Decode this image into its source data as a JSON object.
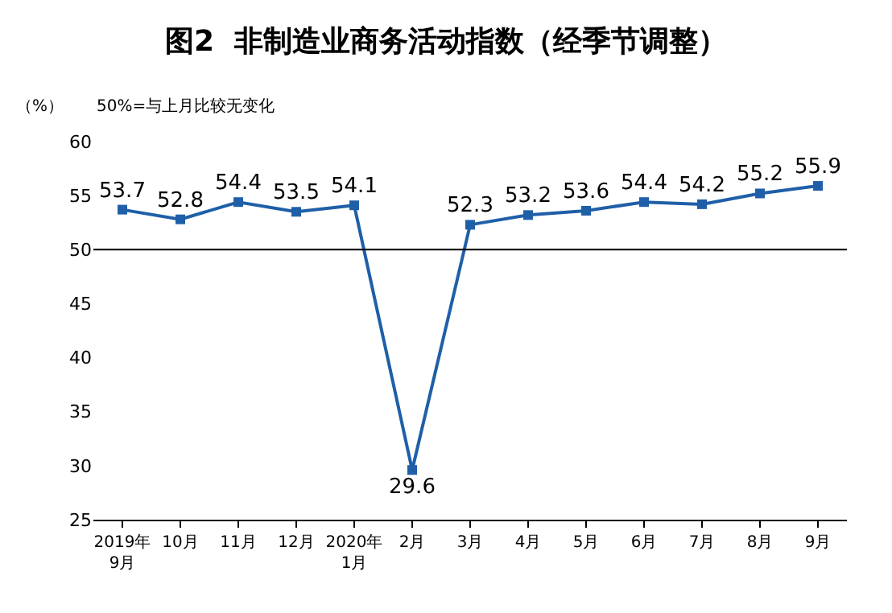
{
  "chart_data": {
    "type": "line",
    "title": "图2  非制造业商务活动指数（经季节调整）",
    "ylabel": "（%）",
    "annotations": [
      "50%=与上月比较无变化"
    ],
    "categories": [
      "2019年\n9月",
      "10月",
      "11月",
      "12月",
      "2020年\n1月",
      "2月",
      "3月",
      "4月",
      "5月",
      "6月",
      "7月",
      "8月",
      "9月"
    ],
    "series": [
      {
        "color": "#1f5fa8",
        "values": [
          53.7,
          52.8,
          54.4,
          53.5,
          54.1,
          29.6,
          52.3,
          53.2,
          53.6,
          54.4,
          54.2,
          55.2,
          55.9
        ]
      }
    ],
    "ylim": [
      25,
      60
    ],
    "yticks": [
      25,
      30,
      35,
      40,
      45,
      50,
      55,
      60
    ],
    "ref_lines": [
      {
        "axis": "y",
        "value": 50,
        "color": "#000000"
      }
    ],
    "data_labels": true,
    "marker": "square",
    "line_style": "solid",
    "legend": false
  }
}
